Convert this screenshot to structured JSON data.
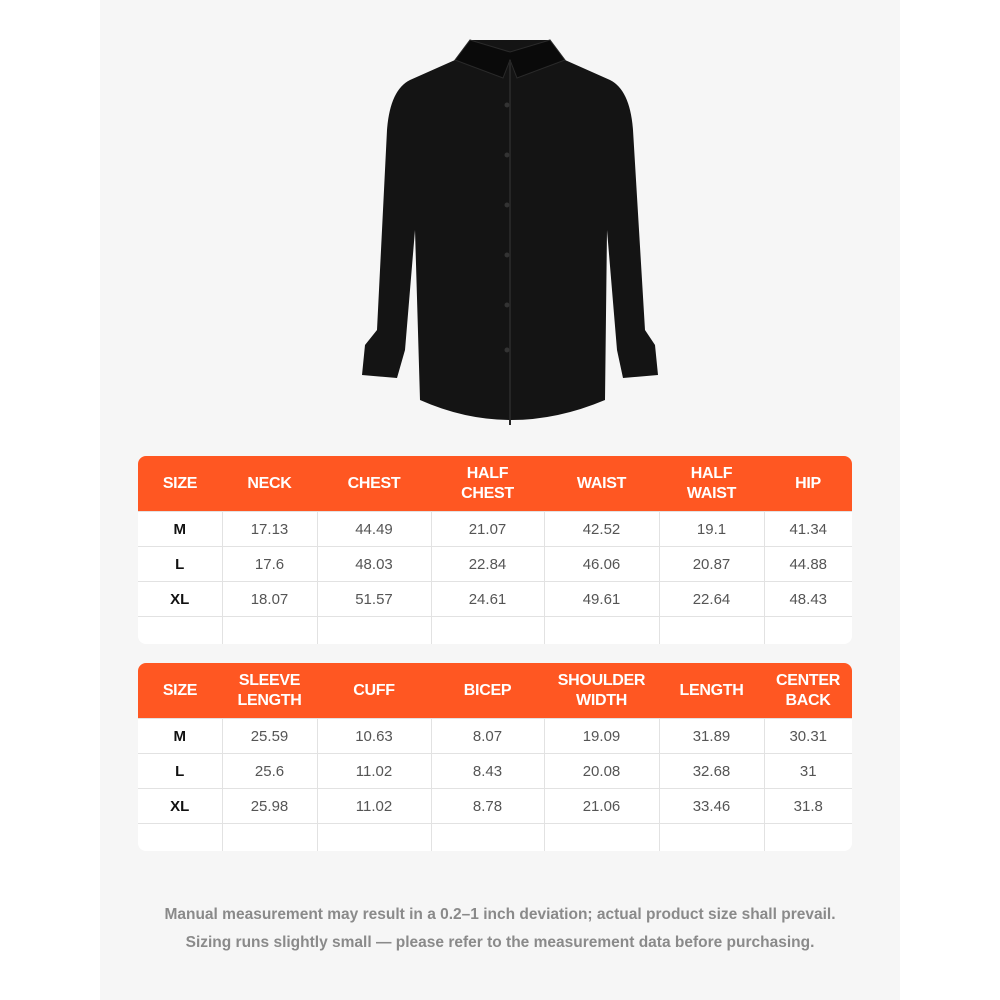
{
  "colors": {
    "header": "#ff5722",
    "panel": "#f6f6f6"
  },
  "product_image": {
    "icon": "black-dress-shirt"
  },
  "table1": {
    "headers": [
      "SIZE",
      "NECK",
      "CHEST",
      "HALF\nCHEST",
      "WAIST",
      "HALF\nWAIST",
      "HIP"
    ],
    "rows": [
      [
        "M",
        "17.13",
        "44.49",
        "21.07",
        "42.52",
        "19.1",
        "41.34"
      ],
      [
        "L",
        "17.6",
        "48.03",
        "22.84",
        "46.06",
        "20.87",
        "44.88"
      ],
      [
        "XL",
        "18.07",
        "51.57",
        "24.61",
        "49.61",
        "22.64",
        "48.43"
      ]
    ]
  },
  "table2": {
    "headers": [
      "SIZE",
      "SLEEVE\nLENGTH",
      "CUFF",
      "BICEP",
      "SHOULDER\nWIDTH",
      "LENGTH",
      "CENTER\nBACK"
    ],
    "rows": [
      [
        "M",
        "25.59",
        "10.63",
        "8.07",
        "19.09",
        "31.89",
        "30.31"
      ],
      [
        "L",
        "25.6",
        "11.02",
        "8.43",
        "20.08",
        "32.68",
        "31"
      ],
      [
        "XL",
        "25.98",
        "11.02",
        "8.78",
        "21.06",
        "33.46",
        "31.8"
      ]
    ]
  },
  "notes": [
    "Manual measurement may result in a 0.2–1 inch deviation; actual product size shall prevail.",
    "Sizing runs slightly small — please refer to the measurement data before purchasing."
  ]
}
